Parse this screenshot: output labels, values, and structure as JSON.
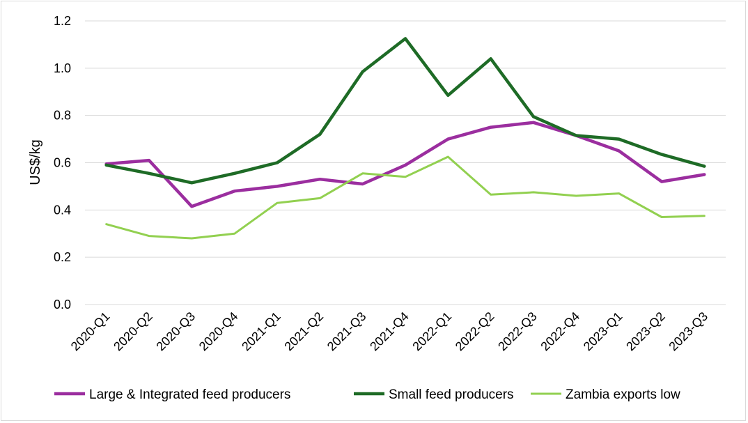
{
  "chart_data": {
    "type": "line",
    "title": "",
    "xlabel": "",
    "ylabel": "US$/kg",
    "ylim": [
      0,
      1.2
    ],
    "yticks": [
      "0.0",
      "0.2",
      "0.4",
      "0.6",
      "0.8",
      "1.0",
      "1.2"
    ],
    "grid": true,
    "legend_position": "bottom",
    "categories": [
      "2020-Q1",
      "2020-Q2",
      "2020-Q3",
      "2020-Q4",
      "2021-Q1",
      "2021-Q2",
      "2021-Q3",
      "2021-Q4",
      "2022-Q1",
      "2022-Q2",
      "2022-Q3",
      "2022-Q4",
      "2023-Q1",
      "2023-Q2",
      "2023-Q3"
    ],
    "series": [
      {
        "name": "Large & Integrated feed producers",
        "color": "#9b2e9f",
        "values": [
          0.595,
          0.61,
          0.415,
          0.48,
          0.5,
          0.53,
          0.51,
          0.59,
          0.7,
          0.75,
          0.77,
          0.715,
          0.65,
          0.52,
          0.55
        ]
      },
      {
        "name": "Small feed producers",
        "color": "#1e6b26",
        "values": [
          0.59,
          0.555,
          0.515,
          0.555,
          0.6,
          0.72,
          0.985,
          1.125,
          0.885,
          1.04,
          0.795,
          0.715,
          0.7,
          0.635,
          0.585
        ]
      },
      {
        "name": "Zambia exports low",
        "color": "#92d050",
        "values": [
          0.34,
          0.29,
          0.28,
          0.3,
          0.43,
          0.45,
          0.555,
          0.54,
          0.625,
          0.465,
          0.475,
          0.46,
          0.47,
          0.37,
          0.375
        ]
      }
    ]
  }
}
